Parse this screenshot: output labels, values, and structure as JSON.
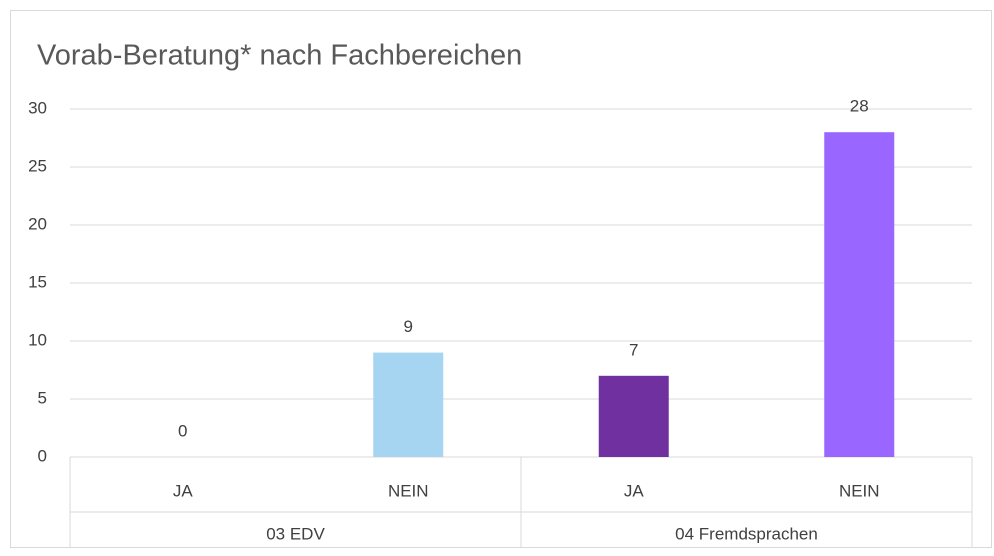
{
  "chart_data": {
    "type": "bar",
    "title": "Vorab-Beratung* nach Fachbereichen",
    "categories": [
      "JA",
      "NEIN",
      "JA",
      "NEIN"
    ],
    "groups": [
      "03 EDV",
      "04 Fremdsprachen"
    ],
    "values": [
      0,
      9,
      7,
      28
    ],
    "colors": [
      "#2e75b6",
      "#a5d5f0",
      "#7030a0",
      "#9966ff"
    ],
    "ylim": [
      0,
      30
    ],
    "yticks": [
      0,
      5,
      10,
      15,
      20,
      25,
      30
    ],
    "grid": true
  }
}
